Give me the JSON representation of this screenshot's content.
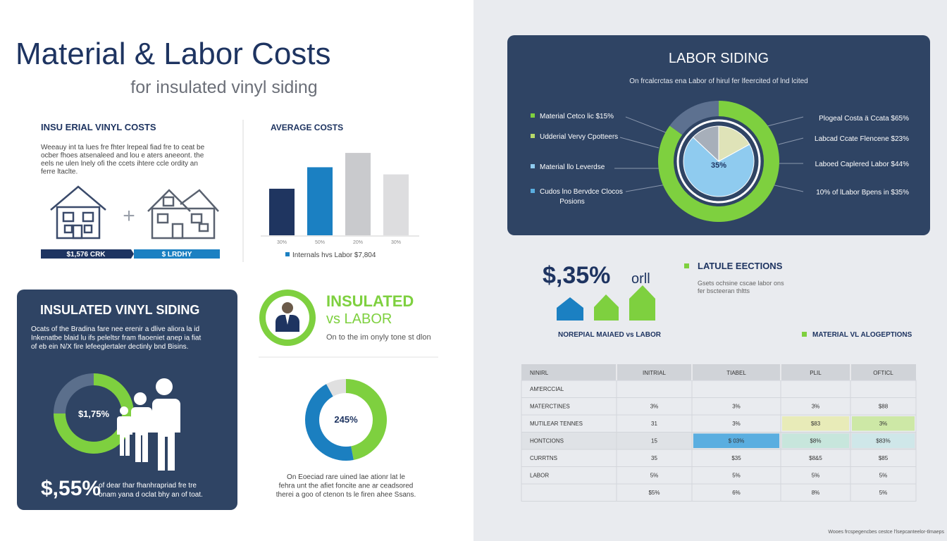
{
  "header": {
    "title": "Material & Labor Costs",
    "subtitle": "for insulated vinyl siding"
  },
  "vinyl_costs": {
    "title": "INSU ERIAL VINYL COSTS",
    "text": [
      "Weeauy int ta lues fre fhter lrepeal fiad fre to ceat be",
      "ocber fhoes atsenaleed and lou e aters aneeont. the",
      "eels ne ulen lnely ofi the ccets ihtere ccle ordity an",
      "ferre ltaclte."
    ],
    "bars": [
      "$1,576 CRK",
      "$ LRDHY"
    ]
  },
  "average_costs": {
    "type": "bar",
    "title": "AVERAGE COSTS",
    "categories": [
      "30%",
      "50%",
      "20%",
      "30%"
    ],
    "values": [
      65,
      95,
      115,
      85
    ],
    "colors": [
      "#1f3560",
      "#1b80c2",
      "#c9cacd",
      "#dddddf"
    ],
    "ylim": [
      0,
      120
    ],
    "legend": "Internals hvs Labor $7,804",
    "legend_color": "#1b80c2"
  },
  "siding_panel": {
    "title": "INSULATED VINYL SIDING",
    "text": [
      "Ocats of the Bradina fare nee erenir a dlive aliora la id",
      "Inkenatbe blaid lu ifs peleltsr fram flaoeniet anep ia fiat",
      "of eb ein N/X fire lefeeglertaler dectinly bnd Bisins."
    ],
    "donut": {
      "type": "pie",
      "label": "$1,75%",
      "values": [
        75,
        25
      ],
      "colors": [
        "#7ed03f",
        "#5b6f8c"
      ]
    },
    "big_value": "$,55%",
    "caption": [
      "of dear thar fhanhrapriad fre tre",
      "onam yana d oclat bhy an of toat."
    ]
  },
  "versus": {
    "title": "INSULATED",
    "subtitle": "vs LABOR",
    "text": "On to the im onyly tone st dlon"
  },
  "middle_donut": {
    "type": "pie",
    "label": "245%",
    "values": [
      47,
      45,
      8
    ],
    "colors": [
      "#7ed03f",
      "#1b7fc0",
      "#e0e0e0"
    ],
    "caption": [
      "On Eoeciad rare uined lae ationr lat le",
      "fehra unt the afiet foncite ane ar ceadsored",
      "therei a goo of ctenon ts le firen ahee Ssans."
    ]
  },
  "labor_siding": {
    "title": "LABOR SIDING",
    "subtitle": "On frcalcrctas ena Labor of hirul fer lfeercited of lnd lcited",
    "ring": {
      "type": "pie",
      "values": [
        85,
        15
      ],
      "colors": [
        "#7ed03f",
        "#5d7190"
      ]
    },
    "pie": {
      "type": "pie",
      "label": "35%",
      "values": [
        17,
        70,
        13
      ],
      "colors": [
        "#dfe3b8",
        "#8fcbef",
        "#a7afba"
      ]
    },
    "left_labels": [
      {
        "text": "Material Cetco lic $15%",
        "color": "#7ed03f"
      },
      {
        "text": "Udderial Vervy Cpotteers",
        "color": "#b6d96a"
      },
      {
        "text": "Material llo Leverdse",
        "color": "#8fcbef"
      },
      {
        "text": "Cudos lno Bervdce Clocos",
        "color": "#5aaee0"
      }
    ],
    "left_note": "Posions",
    "right_labels": [
      "Plogeal Costa ä Ccata $65%",
      "Labcad Ccate Flencene $23%",
      "Laboed Caplered Labor $44%",
      "10% of lLabor Bpens in $35%"
    ]
  },
  "estimate": {
    "value": "$,35%",
    "suffix": "orll",
    "title": "LATULE EECTIONS",
    "text": [
      "Gsets ochsine cscae labor ons",
      "fer bscteeran thltts"
    ],
    "label_left": "NOREPIAL MAIAED vs LABOR",
    "label_right": "MATERIAL VL ALOGEPTIONS"
  },
  "table": {
    "header": [
      "NINIRL",
      "INITRIAL",
      "TIABEL",
      "PLIL",
      "OFTICL"
    ],
    "rows": [
      [
        "AM'ERCCIAL",
        null,
        null,
        null,
        null
      ],
      [
        "MATERCTINES",
        "3%",
        "3%",
        "3%",
        "$88"
      ],
      [
        "MUTILEAR TENNES",
        "31",
        "3%",
        "$83",
        "3%"
      ],
      [
        "HONTCIONS",
        "15",
        "$ 03%",
        "$8%",
        "$83%"
      ],
      [
        "CURRTNS",
        "35",
        "$35",
        "$8&5",
        "$85"
      ],
      [
        "LABOR",
        "5%",
        "5%",
        "5%",
        "5%"
      ],
      [
        null,
        "$5%",
        "6%",
        "8%",
        "5%"
      ]
    ]
  },
  "footer": "Wooes frcspegencbes cestce l'lsepcanteelor-tlmaeps"
}
